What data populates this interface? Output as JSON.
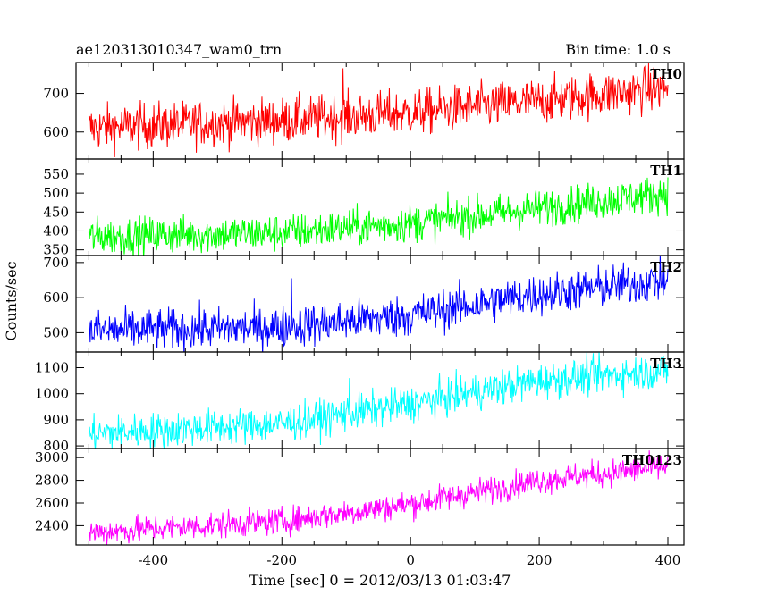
{
  "header": {
    "left": "ae120313010347_wam0_trn",
    "right": "Bin time: 1.0 s"
  },
  "chart_data": {
    "type": "line",
    "title": "ae120313010347_wam0_trn",
    "subtitle": "Bin time: 1.0 s",
    "xlabel": "Time [sec] 0 = 2012/03/13 01:03:47",
    "ylabel": "Counts/sec",
    "xlim": [
      -520,
      425
    ],
    "x_ticks": [
      -400,
      -200,
      0,
      200,
      400
    ],
    "x_range_data": [
      -500,
      400
    ],
    "bin_time_s": 1.0,
    "panels": [
      {
        "name": "TH0",
        "color": "#ff0000",
        "ylim": [
          530,
          780
        ],
        "y_ticks": [
          600,
          700
        ],
        "trend": [
          [
            -500,
            610
          ],
          [
            -200,
            630
          ],
          [
            0,
            650
          ],
          [
            200,
            680
          ],
          [
            400,
            715
          ]
        ],
        "noise": 30,
        "spikes": [
          [
            -105,
            765
          ]
        ]
      },
      {
        "name": "TH1",
        "color": "#00ff00",
        "ylim": [
          335,
          590
        ],
        "y_ticks": [
          350,
          400,
          450,
          500,
          550
        ],
        "trend": [
          [
            -500,
            385
          ],
          [
            -200,
            395
          ],
          [
            0,
            420
          ],
          [
            200,
            460
          ],
          [
            400,
            500
          ]
        ],
        "noise": 25,
        "spikes": []
      },
      {
        "name": "TH2",
        "color": "#0000ff",
        "ylim": [
          445,
          720
        ],
        "y_ticks": [
          500,
          600,
          700
        ],
        "trend": [
          [
            -500,
            505
          ],
          [
            -200,
            515
          ],
          [
            0,
            550
          ],
          [
            200,
            610
          ],
          [
            400,
            650
          ]
        ],
        "noise": 30,
        "spikes": [
          [
            -185,
            655
          ]
        ]
      },
      {
        "name": "TH3",
        "color": "#00ffff",
        "ylim": [
          790,
          1160
        ],
        "y_ticks": [
          800,
          900,
          1000,
          1100
        ],
        "trend": [
          [
            -500,
            845
          ],
          [
            -200,
            885
          ],
          [
            0,
            960
          ],
          [
            200,
            1050
          ],
          [
            400,
            1090
          ]
        ],
        "noise": 35,
        "spikes": [
          [
            -95,
            1060
          ]
        ]
      },
      {
        "name": "TH0123",
        "color": "#ff00ff",
        "ylim": [
          2230,
          3080
        ],
        "y_ticks": [
          2400,
          2600,
          2800,
          3000
        ],
        "trend": [
          [
            -500,
            2340
          ],
          [
            -200,
            2440
          ],
          [
            0,
            2590
          ],
          [
            200,
            2800
          ],
          [
            400,
            2920
          ]
        ],
        "noise": 60,
        "spikes": []
      }
    ]
  }
}
